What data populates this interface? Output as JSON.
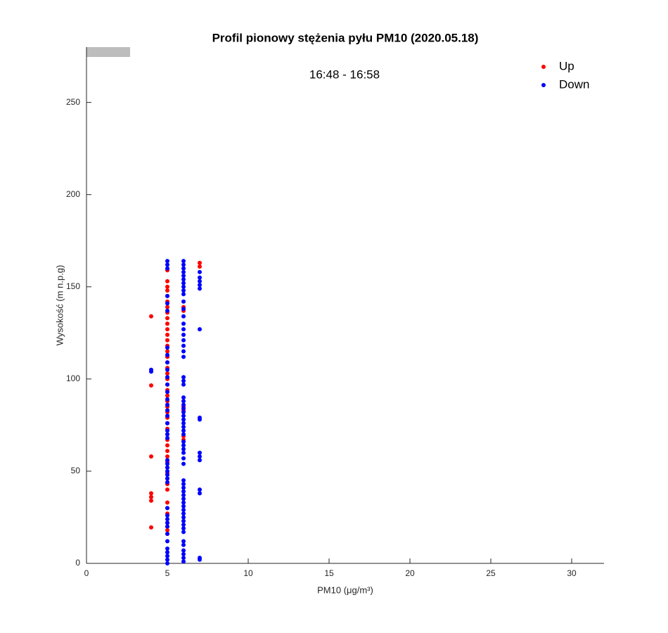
{
  "chart_data": {
    "type": "scatter",
    "title": "Profil pionowy stężenia pyłu PM10 (2020.05.18)",
    "subtitle": "16:48 - 16:58",
    "x_label": "PM10 (μg/m³)",
    "y_label": "Wysokość (m n.p.g)",
    "xlim": [
      0,
      32
    ],
    "ylim": [
      0,
      280
    ],
    "xticks": [
      0,
      5,
      10,
      15,
      20,
      25,
      30
    ],
    "yticks": [
      0,
      50,
      100,
      150,
      200,
      250
    ],
    "grid": false,
    "legend": "upper right",
    "series": [
      {
        "name": "Up",
        "color": "#ff0000",
        "x": [
          4,
          4,
          4,
          4,
          4,
          4,
          4,
          5,
          5,
          5,
          5,
          5,
          5,
          5,
          5,
          5,
          5,
          5,
          5,
          5,
          5,
          5,
          5,
          5,
          5,
          5,
          5,
          5,
          5,
          5,
          5,
          5,
          5,
          5,
          5,
          5,
          5,
          5,
          5,
          5,
          5,
          5,
          5,
          5,
          5,
          5,
          5,
          5,
          5,
          5,
          5,
          5,
          5,
          5,
          6,
          6,
          6,
          6,
          6,
          6,
          7,
          7
        ],
        "values": [
          134,
          96.5,
          58,
          38,
          36,
          34,
          19.5,
          159,
          153,
          150,
          148,
          145,
          142,
          139,
          136,
          133,
          130,
          127,
          124,
          121,
          118,
          115,
          112,
          109,
          106,
          103,
          100,
          97,
          94,
          91,
          88,
          85,
          82,
          79,
          76,
          73,
          70,
          67,
          64,
          61,
          58,
          55,
          52,
          49,
          46,
          43,
          40,
          33,
          30,
          27,
          22,
          20,
          18,
          16,
          139,
          137,
          85,
          83,
          69,
          67,
          163,
          161
        ]
      },
      {
        "name": "Down",
        "color": "#0000ff",
        "x": [
          4,
          4,
          5,
          5,
          5,
          5,
          5,
          5,
          5,
          5,
          5,
          5,
          5,
          5,
          5,
          5,
          5,
          5,
          5,
          5,
          5,
          5,
          5,
          5,
          5,
          5,
          5,
          5,
          5,
          5,
          5,
          5,
          5,
          5,
          5,
          5,
          5,
          5,
          5,
          5,
          5,
          5,
          6,
          6,
          6,
          6,
          6,
          6,
          6,
          6,
          6,
          6,
          6,
          6,
          6,
          6,
          6,
          6,
          6,
          6,
          6,
          6,
          6,
          6,
          6,
          6,
          6,
          6,
          6,
          6,
          6,
          6,
          6,
          6,
          6,
          6,
          6,
          6,
          6,
          6,
          6,
          6,
          6,
          6,
          6,
          6,
          6,
          6,
          6,
          6,
          6,
          6,
          6,
          6,
          6,
          6,
          6,
          6,
          6,
          6,
          6,
          6,
          6,
          7,
          7,
          7,
          7,
          7,
          7,
          7,
          7,
          7,
          7,
          7,
          7,
          7,
          7,
          7
        ],
        "values": [
          105,
          104,
          164,
          162,
          160,
          145,
          141,
          137,
          117,
          113,
          109,
          105,
          101,
          97,
          93,
          89,
          86,
          83,
          80,
          76,
          72,
          70,
          68,
          56,
          54,
          52,
          50,
          48,
          46,
          44,
          30,
          26,
          24,
          22,
          20,
          16,
          12,
          8,
          6,
          4,
          2,
          0,
          164,
          162,
          160,
          158,
          156,
          154,
          152,
          150,
          148,
          146,
          142,
          138,
          134,
          130,
          127,
          124,
          121,
          118,
          115,
          112,
          101,
          99,
          97,
          90,
          88,
          86,
          84,
          82,
          80,
          78,
          76,
          74,
          72,
          70,
          66,
          64,
          62,
          60,
          57,
          54,
          45,
          43,
          41,
          39,
          37,
          35,
          33,
          31,
          29,
          27,
          25,
          23,
          21,
          19,
          17,
          12,
          10,
          7,
          5,
          3,
          1,
          158,
          155,
          153,
          151,
          149,
          127,
          79,
          78,
          60,
          58,
          56,
          40,
          38,
          3,
          2
        ]
      }
    ]
  }
}
